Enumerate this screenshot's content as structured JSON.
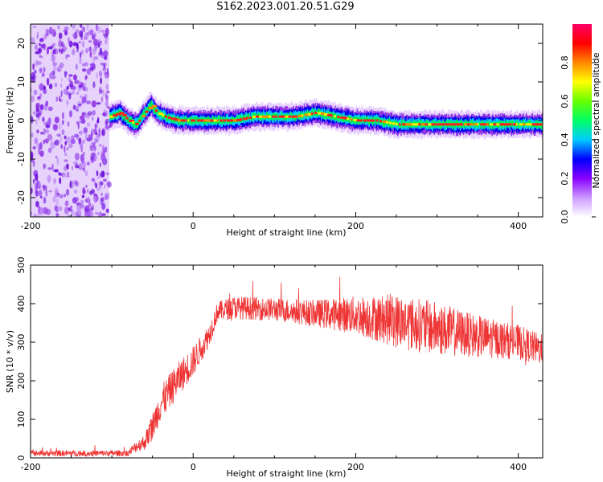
{
  "title": "S162.2023.001.20.51.G29",
  "colors": {
    "snr_line": "#ee3333",
    "axis": "#000000"
  },
  "chart_data": [
    {
      "type": "heatmap",
      "title": "",
      "xlabel": "Height of straight line (km)",
      "ylabel": "Frequency (Hz)",
      "xlim": [
        -200,
        430
      ],
      "ylim": [
        -25,
        25
      ],
      "x_ticks": [
        "-200",
        "0",
        "200",
        "400"
      ],
      "y_ticks": [
        "20",
        "10",
        "0",
        "-10",
        "-20"
      ],
      "colorbar": {
        "label": "Normalized spectral amplitude",
        "range": [
          0.0,
          1.0
        ],
        "ticks": [
          "0.0",
          "0.2",
          "0.4",
          "0.6",
          "0.8"
        ],
        "colormap": [
          "#ffffff",
          "#cc99ff",
          "#8800ff",
          "#0000ff",
          "#00ccff",
          "#00ff66",
          "#66ff00",
          "#ffff00",
          "#ff8800",
          "#ff0000",
          "#ff0066"
        ]
      },
      "noise_region_x": [
        -200,
        -103
      ],
      "ridge": {
        "x": [
          -103,
          -90,
          -80,
          -70,
          -60,
          -52,
          -45,
          -35,
          -20,
          0,
          25,
          50,
          75,
          100,
          125,
          150,
          175,
          200,
          225,
          250,
          275,
          300,
          325,
          350,
          375,
          400,
          430
        ],
        "freq": [
          1,
          2,
          0,
          -1,
          2,
          4,
          2,
          1,
          0,
          0,
          0,
          0,
          1,
          1,
          1,
          2,
          1,
          0,
          0,
          -1,
          -1,
          -1,
          -1,
          -1,
          -1,
          -1,
          -1
        ]
      }
    },
    {
      "type": "line",
      "title": "",
      "xlabel": "Height of straight line (km)",
      "ylabel": "SNR (10 * v/v)",
      "xlim": [
        -200,
        430
      ],
      "ylim": [
        0,
        500
      ],
      "x_ticks": [
        "-200",
        "0",
        "200",
        "400"
      ],
      "y_ticks": [
        "500",
        "400",
        "300",
        "200",
        "100",
        "0"
      ],
      "envelope": {
        "x": [
          -200,
          -80,
          -70,
          -60,
          -50,
          -40,
          -20,
          0,
          20,
          30,
          50,
          100,
          150,
          200,
          250,
          300,
          350,
          400,
          430
        ],
        "mean": [
          12,
          12,
          30,
          40,
          80,
          140,
          200,
          250,
          320,
          380,
          390,
          385,
          375,
          370,
          355,
          335,
          315,
          300,
          280
        ],
        "noise": [
          8,
          8,
          15,
          20,
          35,
          45,
          45,
          40,
          30,
          25,
          30,
          30,
          35,
          50,
          70,
          70,
          55,
          45,
          40
        ]
      }
    }
  ]
}
